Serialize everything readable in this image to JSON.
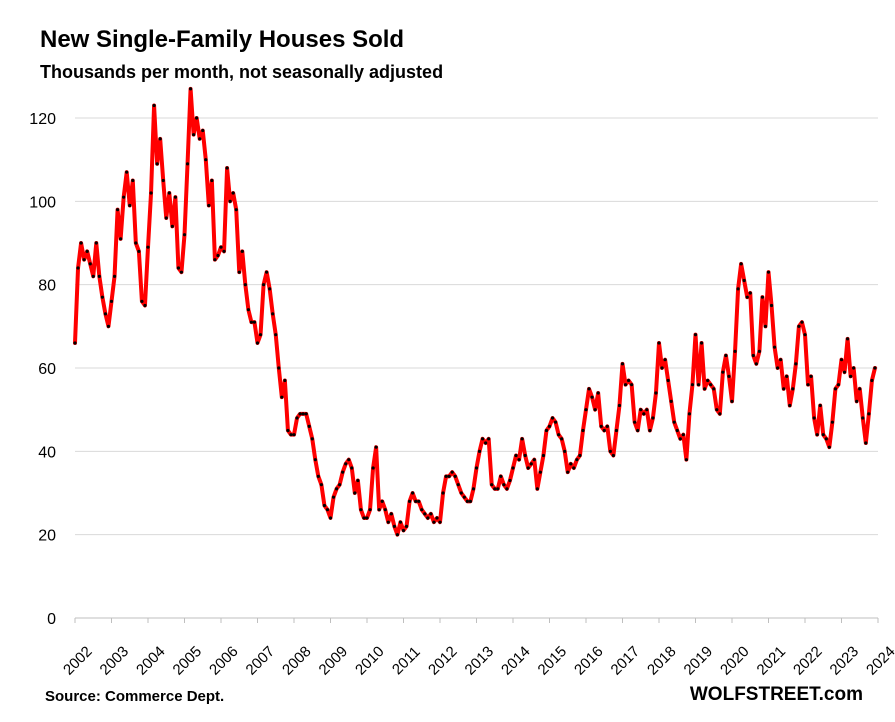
{
  "chart_data": {
    "type": "line",
    "title": "New Single-Family Houses Sold",
    "subtitle": "Thousands per month, not seasonally adjusted",
    "xlabel": "",
    "ylabel": "",
    "ylim": [
      0,
      120
    ],
    "yticks": [
      0,
      20,
      40,
      60,
      80,
      100,
      120
    ],
    "xticks": [
      "2002",
      "2003",
      "2004",
      "2005",
      "2006",
      "2007",
      "2008",
      "2009",
      "2010",
      "2011",
      "2012",
      "2013",
      "2014",
      "2015",
      "2016",
      "2017",
      "2018",
      "2019",
      "2020",
      "2021",
      "2022",
      "2023",
      "2024"
    ],
    "grid": true,
    "line_color": "#ff0000",
    "marker_color": "#000000",
    "x_start": "2002-01",
    "series": [
      {
        "values": [
          66,
          84,
          90,
          86,
          88,
          85,
          82,
          90,
          82,
          77,
          73,
          70,
          76,
          82,
          98,
          91,
          101,
          107,
          99,
          105,
          90,
          88,
          76,
          75,
          89,
          102,
          123,
          109,
          115,
          105,
          96,
          102,
          94,
          101,
          84,
          83,
          92,
          109,
          127,
          116,
          120,
          115,
          117,
          110,
          99,
          105,
          86,
          87,
          89,
          88,
          108,
          100,
          102,
          98,
          83,
          88,
          80,
          74,
          71,
          71,
          66,
          68,
          80,
          83,
          79,
          73,
          68,
          60,
          53,
          57,
          45,
          44,
          44,
          48,
          49,
          49,
          49,
          46,
          43,
          38,
          34,
          32,
          27,
          26,
          24,
          29,
          31,
          32,
          35,
          37,
          38,
          36,
          30,
          33,
          26,
          24,
          24,
          26,
          36,
          41,
          26,
          28,
          26,
          23,
          25,
          22,
          20,
          23,
          21,
          22,
          28,
          30,
          28,
          28,
          26,
          25,
          24,
          25,
          23,
          24,
          23,
          30,
          34,
          34,
          35,
          34,
          32,
          30,
          29,
          28,
          28,
          31,
          36,
          40,
          43,
          42,
          43,
          32,
          31,
          31,
          34,
          32,
          31,
          33,
          36,
          39,
          38,
          43,
          39,
          36,
          37,
          38,
          31,
          35,
          39,
          45,
          46,
          48,
          47,
          44,
          43,
          40,
          35,
          37,
          36,
          38,
          39,
          45,
          50,
          55,
          53,
          50,
          54,
          46,
          45,
          46,
          40,
          39,
          45,
          51,
          61,
          56,
          57,
          56,
          47,
          45,
          50,
          49,
          50,
          45,
          48,
          54,
          66,
          60,
          62,
          57,
          52,
          47,
          45,
          43,
          44,
          38,
          49,
          56,
          68,
          56,
          66,
          55,
          57,
          56,
          55,
          50,
          49,
          59,
          63,
          58,
          52,
          64,
          79,
          85,
          81,
          77,
          78,
          63,
          61,
          64,
          77,
          70,
          83,
          75,
          65,
          60,
          62,
          55,
          58,
          51,
          55,
          61,
          70,
          71,
          68,
          56,
          58,
          48,
          44,
          51,
          44,
          43,
          41,
          47,
          55,
          56,
          62,
          59,
          67,
          58,
          60,
          52,
          55,
          48,
          42,
          49,
          57,
          60
        ]
      }
    ]
  },
  "source_label": "Source: Commerce Dept.",
  "brand_label": "WOLFSTREET.com"
}
